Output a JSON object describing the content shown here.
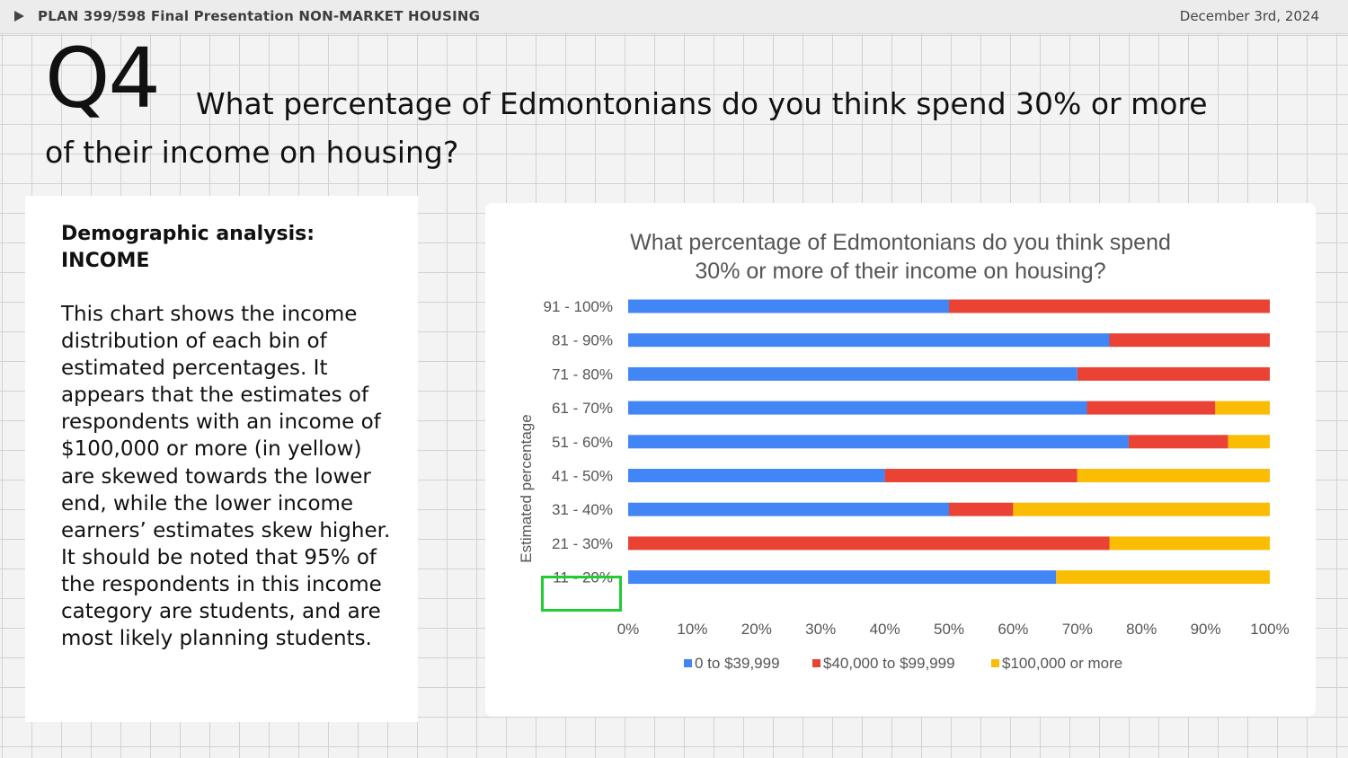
{
  "header": {
    "deck_title": "PLAN 399/598 Final Presentation NON-MARKET HOUSING",
    "date": "December 3rd, 2024"
  },
  "question": {
    "number": "Q4",
    "text_line1": "What percentage of Edmontonians do you think spend 30% or more",
    "text_line2": "of their income on housing?"
  },
  "analysis": {
    "heading_line1": "Demographic analysis:",
    "heading_line2": "INCOME",
    "body": "This chart shows the income distribution of each bin of estimated percentages. It appears that the estimates of respondents with an income of $100,000 or more (in yellow) are skewed towards the lower end, while the lower income earners’ estimates skew higher. It should be noted that 95% of the respondents in this income category are students, and are most likely planning students."
  },
  "colors": {
    "series": [
      "#4285f4",
      "#ea4335",
      "#fbbc04"
    ],
    "highlight": "#22cc33"
  },
  "chart_data": {
    "type": "bar",
    "orientation": "horizontal",
    "stacked": "100%",
    "title_line1": "What percentage of Edmontonians do you think spend",
    "title_line2": "30% or more of their income on housing?",
    "xlabel": "",
    "ylabel": "Estimated percentage",
    "categories": [
      "91 - 100%",
      "81 - 90%",
      "71 - 80%",
      "61 - 70%",
      "51 - 60%",
      "41 - 50%",
      "31 - 40%",
      "21 - 30%",
      "11 - 20%"
    ],
    "series": [
      {
        "name": "0 to $39,999",
        "values": [
          50,
          75,
          70,
          71.5,
          78,
          40,
          50,
          0,
          66.7
        ]
      },
      {
        "name": "$40,000 to $99,999",
        "values": [
          50,
          25,
          30,
          20,
          15.5,
          30,
          10,
          75,
          0
        ]
      },
      {
        "name": "$100,000 or more",
        "values": [
          0,
          0,
          0,
          8.5,
          6.5,
          30,
          40,
          25,
          33.3
        ]
      }
    ],
    "xlim": [
      0,
      100
    ],
    "xticks": [
      "0%",
      "10%",
      "20%",
      "30%",
      "40%",
      "50%",
      "60%",
      "70%",
      "80%",
      "90%",
      "100%"
    ],
    "highlighted_category": "11 - 20%",
    "legend_position": "bottom",
    "grid": false
  }
}
